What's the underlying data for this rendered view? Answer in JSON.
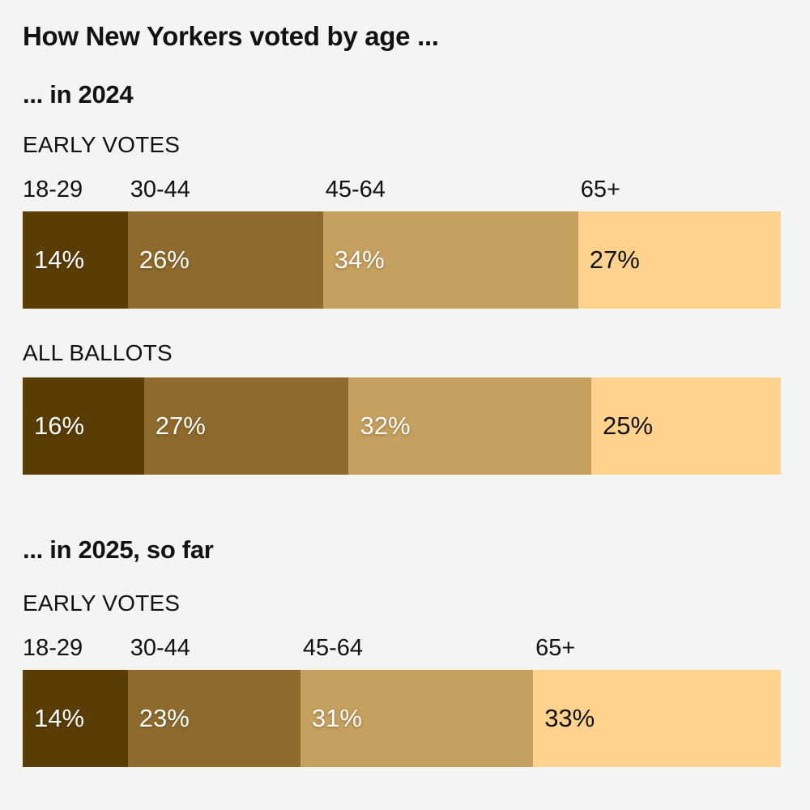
{
  "page": {
    "background_color": "#f4f4f2",
    "text_color": "#121212"
  },
  "title": "How New Yorkers voted by age ...",
  "categories": [
    "18-29",
    "30-44",
    "45-64",
    "65+"
  ],
  "segment_colors": [
    "#5a3c05",
    "#8e6b2c",
    "#c5a05e",
    "#ffd28e"
  ],
  "value_label_colors": [
    "#ffffff",
    "#ffffff",
    "#ffffff",
    "#121212"
  ],
  "unit": "%",
  "sections": [
    {
      "heading": "... in 2024",
      "bars": [
        {
          "label": "EARLY VOTES",
          "show_age_labels": true,
          "values": [
            14,
            26,
            34,
            27
          ]
        },
        {
          "label": "ALL BALLOTS",
          "show_age_labels": false,
          "values": [
            16,
            27,
            32,
            25
          ]
        }
      ]
    },
    {
      "heading": "... in 2025, so far",
      "bars": [
        {
          "label": "EARLY VOTES",
          "show_age_labels": true,
          "values": [
            14,
            23,
            31,
            33
          ]
        }
      ]
    }
  ],
  "chart_data": {
    "type": "bar",
    "subtype": "horizontal-stacked-percentage",
    "title": "How New Yorkers voted by age ...",
    "categories": [
      "18-29",
      "30-44",
      "45-64",
      "65+"
    ],
    "series": [
      {
        "name": "2024 - EARLY VOTES",
        "values": [
          14,
          26,
          34,
          27
        ]
      },
      {
        "name": "2024 - ALL BALLOTS",
        "values": [
          16,
          27,
          32,
          25
        ]
      },
      {
        "name": "2025, so far - EARLY VOTES",
        "values": [
          14,
          23,
          31,
          33
        ]
      }
    ],
    "unit": "%",
    "colors": [
      "#5a3c05",
      "#8e6b2c",
      "#c5a05e",
      "#ffd28e"
    ],
    "value_labels_shown": true,
    "category_labels_position": "above-first-bar-of-each-section",
    "legend_position": "none",
    "grid": false,
    "axis": "none"
  }
}
